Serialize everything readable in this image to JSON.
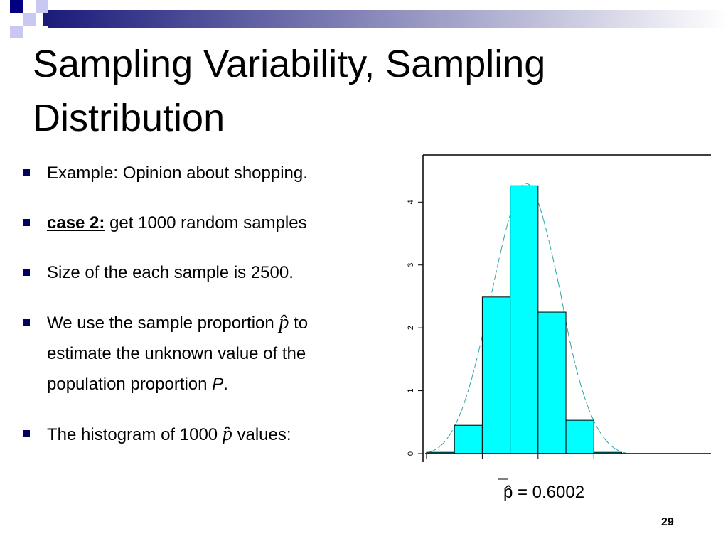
{
  "slide": {
    "title_lines": [
      "Sampling Variability, Sampling",
      "Distribution"
    ],
    "bullets": [
      [
        "Example: Opinion about shopping."
      ],
      [
        "case 2:",
        "get 1000 random samples"
      ],
      [
        "Size of the each sample is 2500."
      ],
      [
        "We use the sample proportion",
        "p̂",
        "to",
        "estimate the unknown value of the",
        "population proportion",
        "P",
        "."
      ],
      [
        "The histogram of 1000",
        "p̂",
        "values:"
      ]
    ],
    "mean_label": "p̂ = 0.6002",
    "page_number": "29"
  },
  "chart_data": {
    "type": "histogram",
    "bins": [
      0.565,
      0.575,
      0.585,
      0.595,
      0.605,
      0.615,
      0.625,
      0.635
    ],
    "values": [
      0.02,
      0.45,
      2.49,
      4.26,
      2.25,
      0.53,
      0.02
    ],
    "color": "#00ffff",
    "xlim": [
      0.5645,
      0.667
    ],
    "ylim": [
      0,
      4.75
    ],
    "yticks": [
      0,
      1,
      2,
      3,
      4
    ]
  }
}
